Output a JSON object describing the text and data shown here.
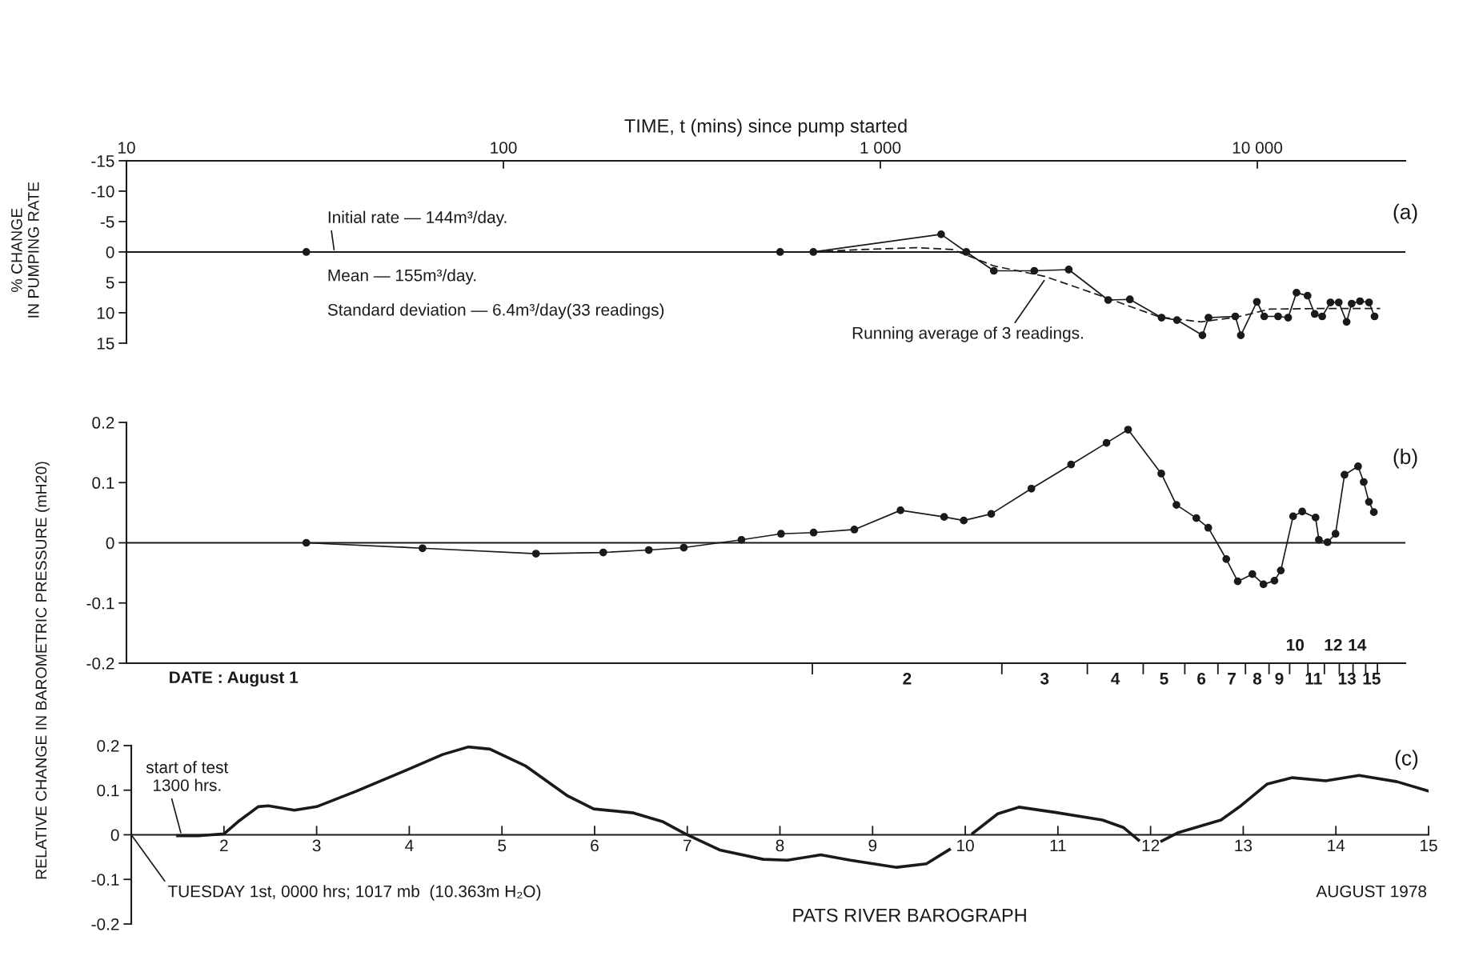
{
  "chart_data": [
    {
      "type": "line",
      "log": "x",
      "xlabel": "TIME, t (mins) since pump started",
      "ylabel": "% CHANGE\nIN PUMPING RATE",
      "xlim": [
        10,
        24700
      ],
      "xticks": [
        10,
        100,
        {
          "value": 1000,
          "label": "1 000"
        },
        {
          "value": 10000,
          "label": "10 000"
        }
      ],
      "ylim": [
        15,
        -15
      ],
      "yticks": [
        -15,
        -10,
        -5,
        0,
        5,
        10,
        15
      ],
      "ref_lines": [
        {
          "axis": "y",
          "value": 0,
          "color": "#1a1a1a"
        }
      ],
      "series": [
        {
          "color": "#1a1a1a",
          "marker": "circle",
          "line_style": "solid",
          "x": [
            30,
            542,
            664,
            1449,
            1690,
            2000,
            2560,
            3160,
            4020,
            4590,
            5570,
            6120,
            7150,
            7420,
            8740,
            9040,
            9970,
            10430,
            11350,
            12070,
            12700,
            13590,
            14200,
            14860,
            15630,
            16440,
            17250,
            17790,
            18720,
            19780,
            20460
          ],
          "values": [
            0,
            0,
            0,
            -2.9,
            0,
            3.1,
            3.1,
            2.9,
            7.9,
            7.8,
            10.8,
            11.2,
            13.7,
            10.8,
            10.6,
            13.7,
            8.2,
            10.6,
            10.6,
            10.8,
            6.7,
            7.2,
            10.2,
            10.6,
            8.3,
            8.3,
            11.5,
            8.5,
            8.1,
            8.3,
            10.6
          ]
        },
        {
          "color": "#1a1a1a",
          "marker": "none",
          "line_style": "dashed",
          "x": [
            664,
            887,
            1243,
            1553,
            2000,
            2723,
            3605,
            4520,
            5500,
            7080,
            8850,
            10790,
            14690,
            21180
          ],
          "values": [
            0,
            -0.4,
            -0.7,
            -0.4,
            2.3,
            4.0,
            6.6,
            8.8,
            10.7,
            11.5,
            10.7,
            9.4,
            9.3,
            9.3
          ]
        }
      ],
      "annotations": [
        {
          "text": "Initial rate — 144m³/day.",
          "x": 35.6,
          "y": 0
        },
        "Mean — 155m³/day.",
        "Standard deviation — 6.4m³/day(33 readings)",
        {
          "text": "Running average of 3 readings.",
          "x": 2740,
          "y": 4.4
        },
        "(a)"
      ]
    },
    {
      "type": "line",
      "log": "x",
      "ylabel": "RELATIVE CHANGE IN BAROMETRIC PRESSURE (mH20)",
      "xlim": [
        10,
        24700
      ],
      "ylim": [
        -0.2,
        0.2
      ],
      "yticks": [
        -0.2,
        -0.1,
        0,
        0.1,
        0.2
      ],
      "tick_labels": "y",
      "xticks": [
        {
          "value": 660,
          "label": null
        },
        {
          "value": 2100,
          "label": null
        },
        {
          "value": 3540,
          "label": null
        },
        {
          "value": 4980,
          "label": null
        },
        {
          "value": 6420,
          "label": null
        },
        {
          "value": 7860,
          "label": null
        },
        {
          "value": 9300,
          "label": null
        },
        {
          "value": 10740,
          "label": null
        },
        {
          "value": 12180,
          "label": null
        },
        {
          "value": 13620,
          "label": null
        },
        {
          "value": 15060,
          "label": null
        },
        {
          "value": 16500,
          "label": null
        },
        {
          "value": 17940,
          "label": null
        },
        {
          "value": 19380,
          "label": null
        },
        {
          "value": 20820,
          "label": null
        }
      ],
      "ref_lines": [
        {
          "axis": "y",
          "value": 0,
          "color": "#1a1a1a"
        }
      ],
      "series": [
        {
          "color": "#1a1a1a",
          "marker": "circle",
          "line_style": "solid",
          "x": [
            30,
            61,
            122,
            184,
            243,
            301,
            428,
            545,
            665,
            853,
            1131,
            1476,
            1664,
            1968,
            2515,
            3205,
            3980,
            4540,
            5560,
            6100,
            6890,
            7410,
            8270,
            8870,
            9700,
            10380,
            11100,
            11540,
            12440,
            13150,
            14270,
            14560,
            15350,
            16120,
            17030,
            18500,
            19150,
            19770,
            20370
          ],
          "values": [
            0,
            -0.009,
            -0.018,
            -0.016,
            -0.012,
            -0.008,
            0.005,
            0.015,
            0.017,
            0.022,
            0.054,
            0.043,
            0.037,
            0.048,
            0.09,
            0.13,
            0.166,
            0.188,
            0.115,
            0.063,
            0.041,
            0.025,
            -0.027,
            -0.064,
            -0.052,
            -0.069,
            -0.063,
            -0.046,
            0.044,
            0.052,
            0.042,
            0.005,
            0.001,
            0.015,
            0.113,
            0.127,
            0.101,
            0.068,
            0.051
          ]
        }
      ],
      "annotations": [
        "(b)",
        "DATE : August 1",
        "2",
        "3",
        "4",
        "5",
        "6",
        "7",
        "8",
        "9",
        "10",
        "11",
        "12",
        "13",
        "14",
        "15"
      ]
    },
    {
      "type": "line",
      "xlim": [
        1,
        15
      ],
      "xticks": [
        2,
        3,
        4,
        5,
        6,
        7,
        8,
        9,
        10,
        11,
        12,
        13,
        14,
        15
      ],
      "ylim": [
        -0.2,
        0.2
      ],
      "yticks": [
        -0.2,
        -0.1,
        0,
        0.1,
        0.2
      ],
      "series": [
        {
          "color": "#1a1a1a",
          "marker": "none",
          "line_style": "solid",
          "x": [
            1.5,
            1.73,
            2.0,
            2.15,
            2.37,
            2.48,
            2.76,
            3.0,
            3.42,
            3.98,
            4.36,
            4.64,
            4.87,
            5.25,
            5.71,
            5.99,
            6.42,
            6.74,
            6.98,
            7.35,
            7.82,
            8.08,
            8.44,
            8.76,
            9.26,
            9.58,
            9.83,
            9.95,
            10.08,
            10.35,
            10.58,
            10.98,
            11.48,
            11.71,
            11.87,
            12.0,
            12.12,
            12.3,
            12.76,
            12.98,
            13.26,
            13.53,
            13.89,
            14.25,
            14.66,
            15.0
          ],
          "values": [
            -0.002,
            -0.002,
            0.002,
            0.029,
            0.063,
            0.065,
            0.055,
            0.063,
            0.097,
            0.146,
            0.18,
            0.197,
            0.192,
            0.155,
            0.087,
            0.058,
            0.049,
            0.029,
            0.002,
            -0.034,
            -0.055,
            -0.057,
            -0.045,
            -0.057,
            -0.073,
            -0.065,
            -0.033,
            null,
            0.003,
            0.047,
            0.062,
            0.05,
            0.033,
            0.016,
            -0.012,
            null,
            -0.014,
            0.005,
            0.033,
            0.066,
            0.114,
            0.128,
            0.121,
            0.133,
            0.119,
            0.098
          ]
        }
      ],
      "annotations": [
        {
          "text": "start of test\n1300 hrs.",
          "x": 1.54,
          "y": 0
        },
        "TUESDAY 1st, 0000 hrs; 1017 mb  (10.363m H₂O)",
        "(c)",
        "PATS RIVER BAROGRAPH",
        "AUGUST 1978"
      ]
    }
  ]
}
